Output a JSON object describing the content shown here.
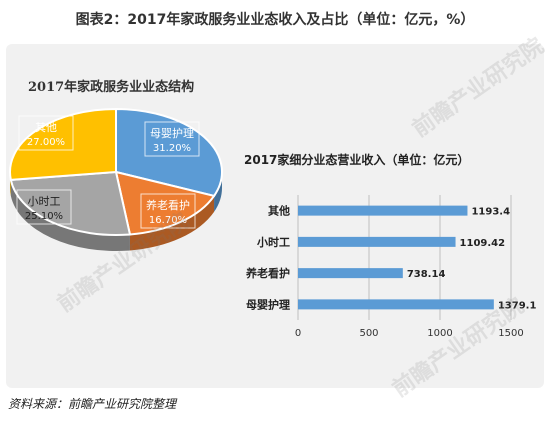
{
  "title": "图表2：2017年家政服务业业态收入及占比（单位：亿元，%）",
  "source": "资料来源：前瞻产业研究院整理",
  "watermark": "前瞻产业研究院",
  "chart_data": [
    {
      "type": "pie",
      "title": "2017年家政服务业业态结构",
      "slices": [
        {
          "label": "母婴护理",
          "value": 31.2,
          "value_label": "31.20%",
          "color": "#5b9bd5"
        },
        {
          "label": "养老看护",
          "value": 16.7,
          "value_label": "16.70%",
          "color": "#ed7d31"
        },
        {
          "label": "小时工",
          "value": 25.1,
          "value_label": "25.10%",
          "color": "#a5a5a5"
        },
        {
          "label": "其他",
          "value": 27.0,
          "value_label": "27.00%",
          "color": "#ffc000"
        }
      ]
    },
    {
      "type": "bar",
      "orientation": "horizontal",
      "title": "2017家细分业态营业收入（单位：亿元）",
      "categories": [
        "其他",
        "小时工",
        "养老看护",
        "母婴护理"
      ],
      "values": [
        1193.4,
        1109.42,
        738.14,
        1379.1
      ],
      "value_labels": [
        "1193.4",
        "1109.42",
        "738.14",
        "1379.1"
      ],
      "xlim": [
        0,
        1500
      ],
      "xticks": [
        "0",
        "500",
        "1000",
        "1500"
      ],
      "grid": true,
      "color": "#5b9bd5"
    }
  ]
}
